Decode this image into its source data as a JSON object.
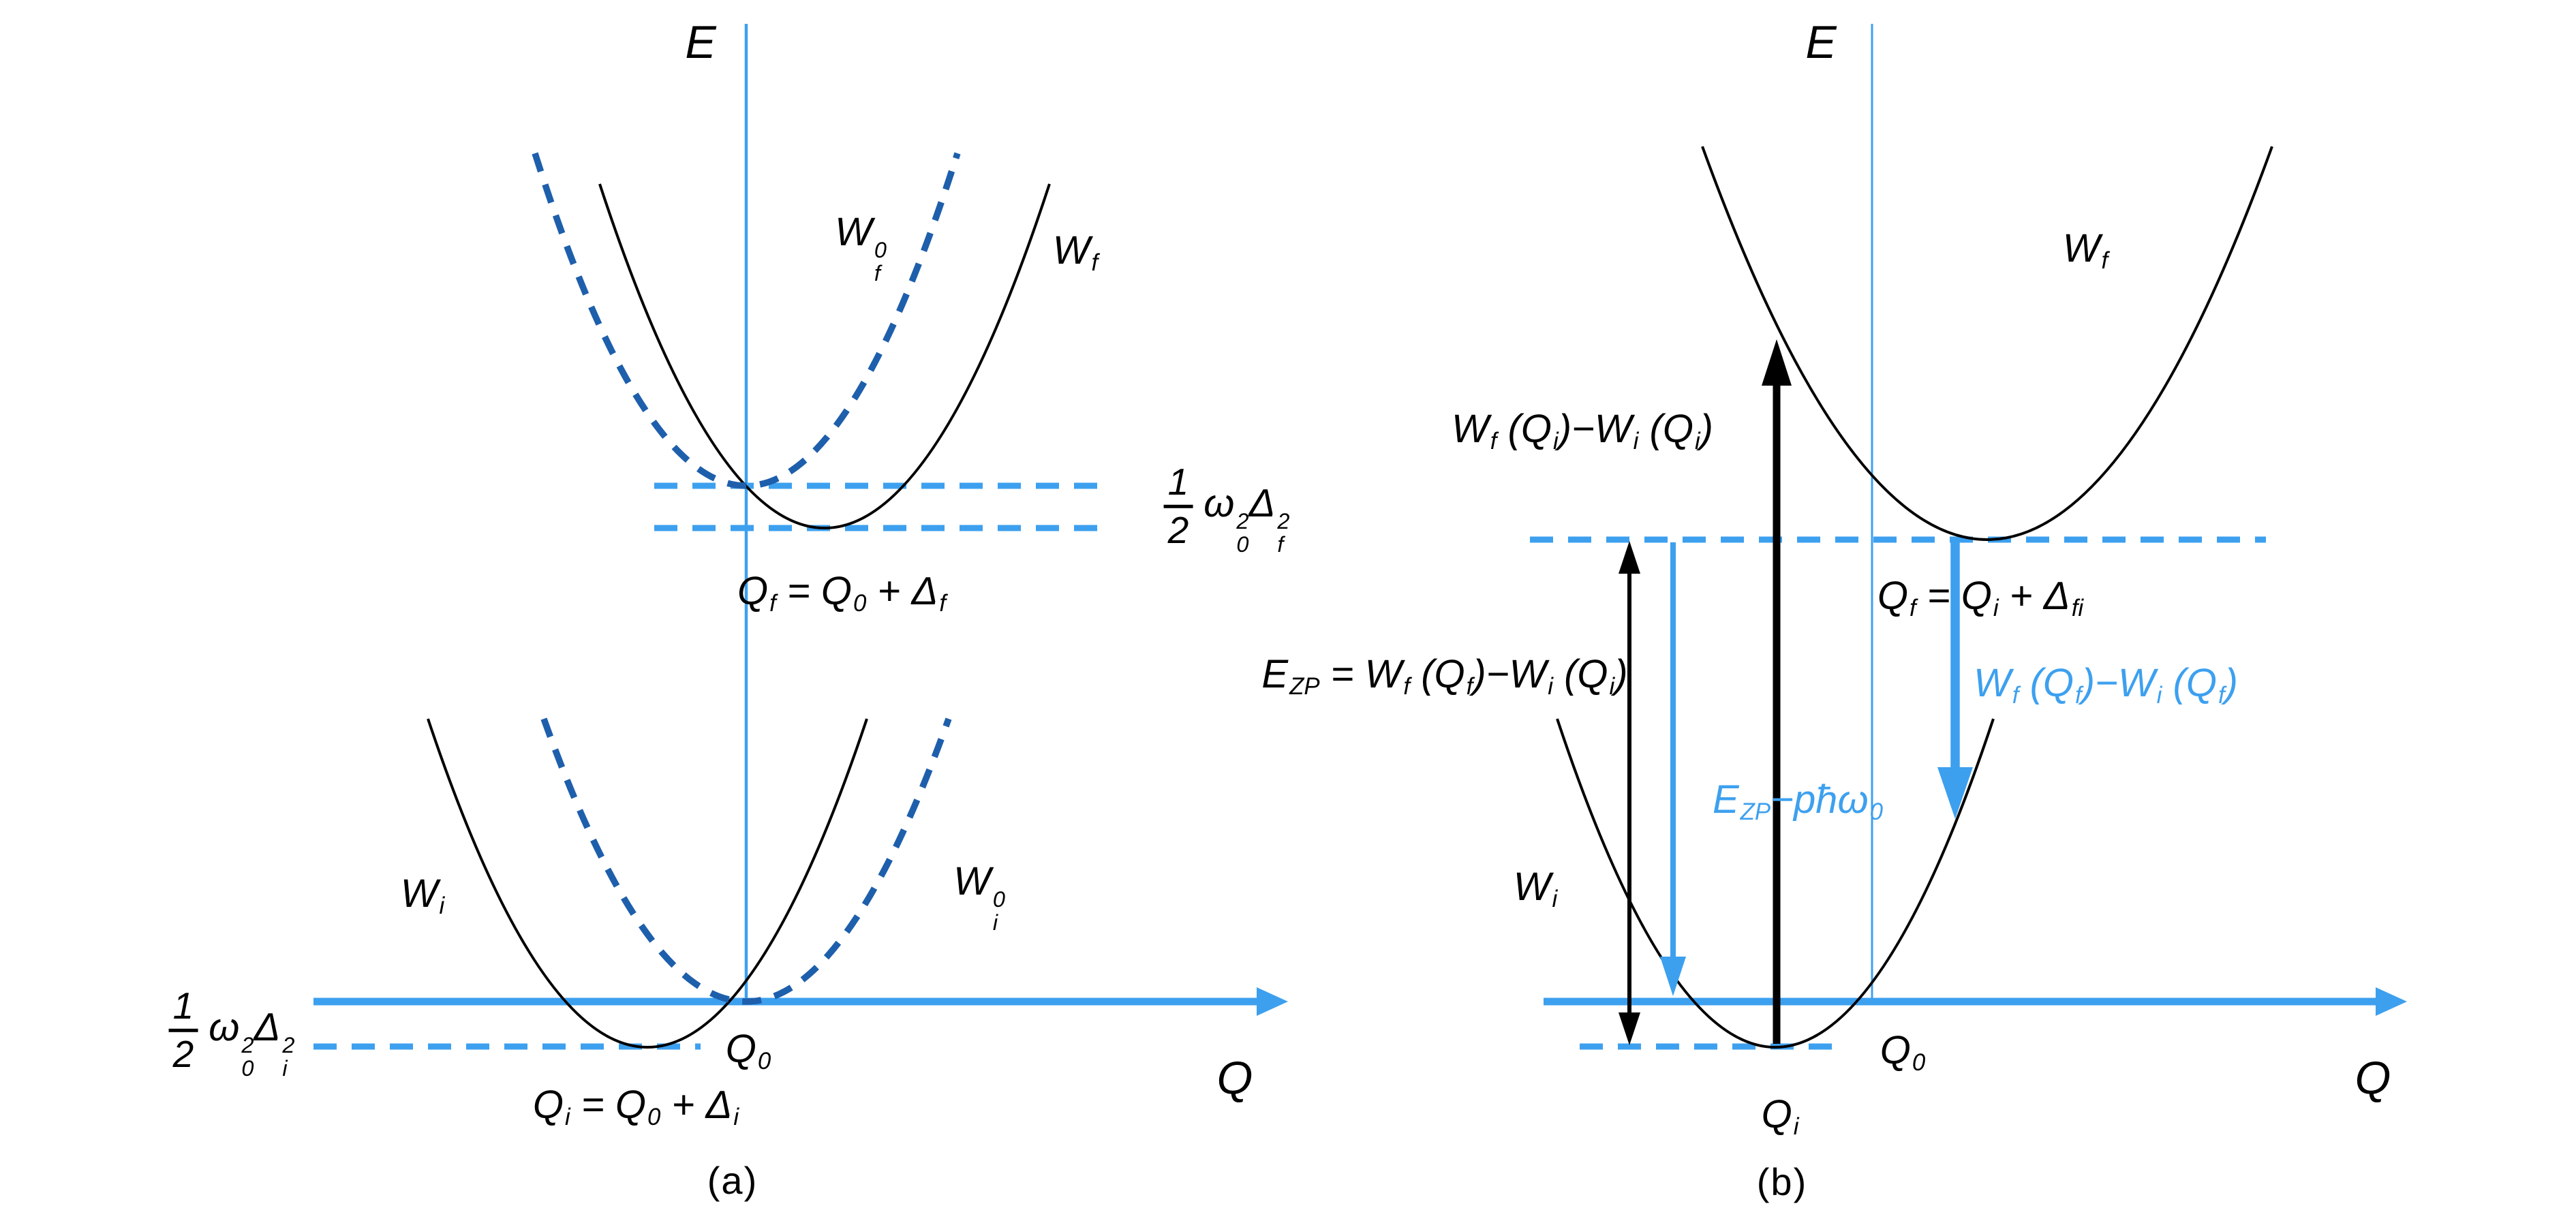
{
  "colors": {
    "light_blue": "#3DA0EF",
    "dark_blue": "#1E5FAC",
    "curve_black": "#000000"
  },
  "panel_a": {
    "caption": "(a)",
    "energy_axis_label": "E",
    "coordinate_axis_label": "Q",
    "labels": {
      "wf0": [
        {
          "t": "W",
          "sup": "0",
          "sub": "f"
        }
      ],
      "wf": [
        {
          "t": "W",
          "sub": "f"
        }
      ],
      "relaxation_f": [
        {
          "frac": [
            "1",
            "2"
          ]
        },
        {
          "t": "ω",
          "sup": "2",
          "sub": "0"
        },
        {
          "t": "Δ",
          "sup": "2",
          "sub": "f"
        }
      ],
      "qf_equation": [
        {
          "t": "Q",
          "sub": "f"
        },
        {
          "t": " = "
        },
        {
          "t": "Q",
          "sub": "0"
        },
        {
          "t": " + "
        },
        {
          "t": "Δ",
          "sub": "f"
        }
      ],
      "wi": [
        {
          "t": "W",
          "sub": "i"
        }
      ],
      "wi0": [
        {
          "t": "W",
          "sup": "0",
          "sub": "i"
        }
      ],
      "relaxation_i": [
        {
          "frac": [
            "1",
            "2"
          ]
        },
        {
          "t": "ω",
          "sup": "2",
          "sub": "0"
        },
        {
          "t": "Δ",
          "sup": "2",
          "sub": "i"
        }
      ],
      "q0": [
        {
          "t": "Q",
          "sub": "0"
        }
      ],
      "qi_equation": [
        {
          "t": "Q",
          "sub": "i"
        },
        {
          "t": " = "
        },
        {
          "t": "Q",
          "sub": "0"
        },
        {
          "t": " + "
        },
        {
          "t": "Δ",
          "sub": "i"
        }
      ]
    }
  },
  "panel_b": {
    "caption": "(b)",
    "energy_axis_label": "E",
    "coordinate_axis_label": "Q",
    "labels": {
      "wf": [
        {
          "t": "W",
          "sub": "f"
        }
      ],
      "wi": [
        {
          "t": "W",
          "sub": "i"
        }
      ],
      "absorption": [
        {
          "t": "W",
          "sub": "f"
        },
        {
          "t": " ("
        },
        {
          "t": "Q",
          "sub": "i"
        },
        {
          "t": ")−"
        },
        {
          "t": "W",
          "sub": "i"
        },
        {
          "t": " ("
        },
        {
          "t": "Q",
          "sub": "i"
        },
        {
          "t": ")"
        }
      ],
      "zero_phonon": [
        {
          "t": "E",
          "sub": "ZP"
        },
        {
          "t": " = "
        },
        {
          "t": "W",
          "sub": "f"
        },
        {
          "t": " ("
        },
        {
          "t": "Q",
          "sub": "f"
        },
        {
          "t": ")−"
        },
        {
          "t": "W",
          "sub": "i"
        },
        {
          "t": " ("
        },
        {
          "t": "Q",
          "sub": "i"
        },
        {
          "t": ")"
        }
      ],
      "qf_equation": [
        {
          "t": "Q",
          "sub": "f"
        },
        {
          "t": " = "
        },
        {
          "t": "Q",
          "sub": "i"
        },
        {
          "t": " + "
        },
        {
          "t": "Δ",
          "sub": "fi"
        }
      ],
      "emission": [
        {
          "t": "W",
          "sub": "f"
        },
        {
          "t": " ("
        },
        {
          "t": "Q",
          "sub": "f"
        },
        {
          "t": ")−"
        },
        {
          "t": "W",
          "sub": "i"
        },
        {
          "t": " ("
        },
        {
          "t": "Q",
          "sub": "f"
        },
        {
          "t": ")"
        }
      ],
      "phonon_line": [
        {
          "t": "E",
          "sub": "ZP"
        },
        {
          "t": "−"
        },
        {
          "t": "pħω",
          "sub": "0"
        }
      ],
      "qi": [
        {
          "t": "Q",
          "sub": "i"
        }
      ],
      "q0": [
        {
          "t": "Q",
          "sub": "0"
        }
      ]
    }
  }
}
